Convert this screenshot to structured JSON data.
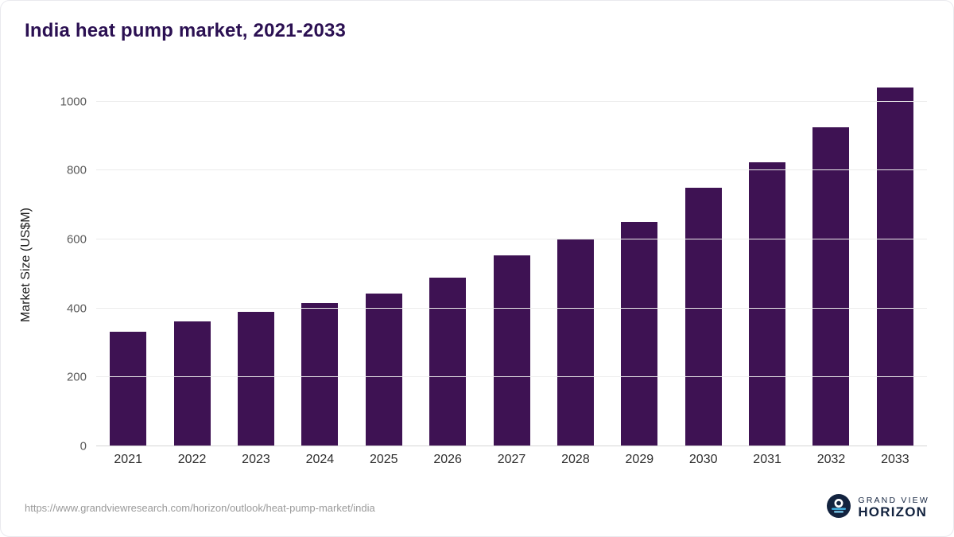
{
  "title": "India heat pump market, 2021-2033",
  "source_url": "https://www.grandviewresearch.com/horizon/outlook/heat-pump-market/india",
  "logo": {
    "line1": "GRAND VIEW",
    "line2": "HORIZON"
  },
  "colors": {
    "bar": "#3e1253",
    "title": "#2b1052",
    "tick_label": "#5a5a5a",
    "gridline": "#ececec",
    "logo_navy": "#13233f",
    "logo_blue": "#45b6e8"
  },
  "chart_data": {
    "type": "bar",
    "title": "India heat pump market, 2021-2033",
    "xlabel": "",
    "ylabel": "Market Size (US$M)",
    "categories": [
      "2021",
      "2022",
      "2023",
      "2024",
      "2025",
      "2026",
      "2027",
      "2028",
      "2029",
      "2030",
      "2031",
      "2032",
      "2033"
    ],
    "values": [
      332,
      362,
      390,
      416,
      444,
      490,
      554,
      600,
      650,
      750,
      824,
      925,
      1040
    ],
    "yticks": [
      0,
      200,
      400,
      600,
      800,
      1000
    ],
    "ylim": [
      0,
      1050
    ],
    "grid": true,
    "legend_position": "none"
  }
}
